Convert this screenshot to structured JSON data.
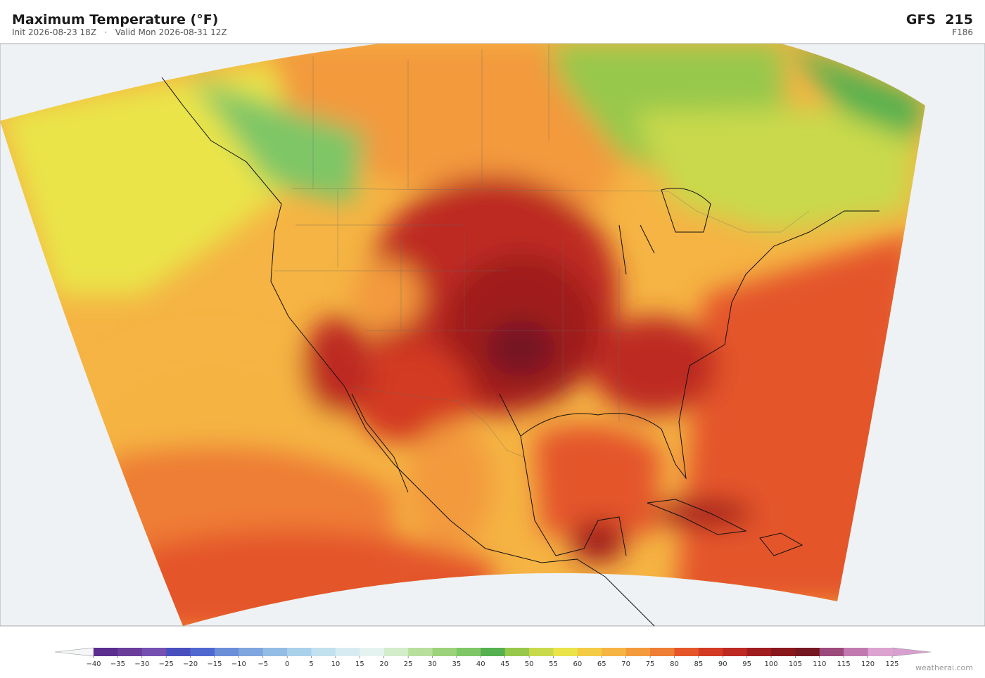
{
  "header": {
    "title": "Maximum Temperature  (°F)",
    "subtitle": "Init 2026-08-23 18Z   ·   Valid Mon 2026-08-31 12Z",
    "model": "GFS  215",
    "forecast_hour": "F186"
  },
  "colorbar": {
    "ticks": [
      {
        "value": -40,
        "label": "−40"
      },
      {
        "value": -35,
        "label": "−35"
      },
      {
        "value": -30,
        "label": "−30"
      },
      {
        "value": -25,
        "label": "−25"
      },
      {
        "value": -20,
        "label": "−20"
      },
      {
        "value": -15,
        "label": "−15"
      },
      {
        "value": -10,
        "label": "−10"
      },
      {
        "value": -5,
        "label": "−5"
      },
      0,
      5,
      10,
      15,
      20,
      25,
      30,
      35,
      40,
      45,
      50,
      55,
      60,
      65,
      70,
      75,
      80,
      85,
      90,
      95,
      100,
      105,
      110,
      115,
      120,
      125
    ],
    "colors": [
      "#5b2d8e",
      "#6a3d9a",
      "#7450b0",
      "#4a4fc0",
      "#4f68d0",
      "#6a8ed8",
      "#7fa6de",
      "#93bde4",
      "#a9d1ea",
      "#c1e1ef",
      "#d6ecf2",
      "#e4f3ef",
      "#d3ecca",
      "#b8e09c",
      "#9bd27a",
      "#7ec666",
      "#55b050",
      "#97c84c",
      "#c9d94c",
      "#eae44a",
      "#f4cb45",
      "#f5b443",
      "#f39a3c",
      "#ee7d35",
      "#e4552a",
      "#d33a24",
      "#bd2a22",
      "#a01d1f",
      "#88181c",
      "#751720",
      "#9c4a7c",
      "#c07ab0",
      "#dca3d0"
    ],
    "under_color": "#f4f6f8",
    "over_color": "#d8a0d0"
  },
  "credit": "weatherai.com"
}
